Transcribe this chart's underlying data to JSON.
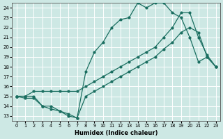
{
  "xlabel": "Humidex (Indice chaleur)",
  "bg_color": "#cde8e4",
  "grid_color": "#ffffff",
  "line_color": "#1a6e60",
  "xlim": [
    -0.5,
    23.5
  ],
  "ylim": [
    12.5,
    24.5
  ],
  "yticks": [
    13,
    14,
    15,
    16,
    17,
    18,
    19,
    20,
    21,
    22,
    23,
    24
  ],
  "xticks": [
    0,
    1,
    2,
    3,
    4,
    5,
    6,
    7,
    8,
    9,
    10,
    11,
    12,
    13,
    14,
    15,
    16,
    17,
    18,
    19,
    20,
    21,
    22,
    23
  ],
  "series1_x": [
    0,
    1,
    2,
    3,
    4,
    5,
    6,
    7,
    8,
    9,
    10,
    11,
    12,
    13,
    14,
    15,
    16,
    17,
    18,
    19,
    20,
    21,
    22,
    23
  ],
  "series1_y": [
    15.0,
    15.0,
    15.0,
    14.0,
    14.0,
    13.5,
    13.0,
    12.8,
    15.0,
    15.5,
    16.0,
    16.5,
    17.0,
    17.5,
    18.0,
    18.5,
    19.0,
    19.8,
    20.5,
    21.5,
    22.0,
    21.5,
    19.0,
    18.0
  ],
  "series2_x": [
    0,
    1,
    2,
    3,
    4,
    5,
    6,
    7,
    8,
    9,
    10,
    11,
    12,
    13,
    14,
    15,
    16,
    17,
    18,
    19,
    20,
    21,
    22,
    23
  ],
  "series2_y": [
    15.0,
    14.8,
    14.8,
    14.0,
    13.7,
    13.5,
    13.2,
    12.8,
    17.5,
    19.5,
    20.5,
    22.0,
    22.8,
    23.0,
    24.5,
    24.0,
    24.5,
    24.5,
    23.5,
    23.0,
    21.0,
    18.5,
    19.0,
    18.0
  ],
  "series3_x": [
    0,
    1,
    2,
    3,
    4,
    5,
    6,
    7,
    8,
    9,
    10,
    11,
    12,
    13,
    14,
    15,
    16,
    17,
    18,
    19,
    20,
    21,
    22,
    23
  ],
  "series3_y": [
    15.0,
    15.0,
    15.5,
    15.5,
    15.5,
    15.5,
    15.5,
    15.5,
    16.0,
    16.5,
    17.0,
    17.5,
    18.0,
    18.5,
    19.0,
    19.5,
    20.0,
    21.0,
    22.0,
    23.5,
    23.5,
    21.0,
    19.2,
    18.0
  ]
}
